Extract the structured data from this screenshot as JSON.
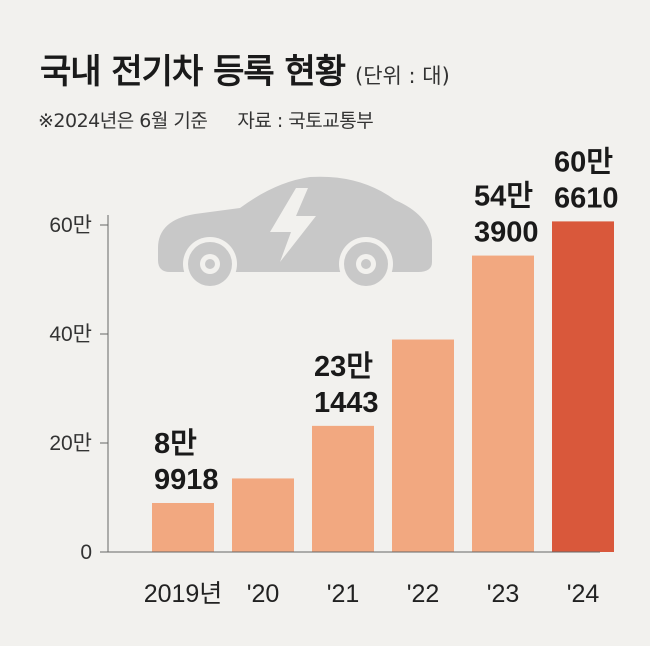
{
  "header": {
    "title": "국내 전기차 등록 현황",
    "unit": "(단위 : 대)",
    "note": "※2024년은 6월 기준",
    "source": "자료 : 국토교통부"
  },
  "chart_data": {
    "type": "bar",
    "categories": [
      "2019년",
      "'20",
      "'21",
      "'22",
      "'23",
      "'24"
    ],
    "values": [
      89918,
      134962,
      231443,
      389855,
      543900,
      606610
    ],
    "data_labels": [
      [
        "8만",
        "9918"
      ],
      null,
      [
        "23만",
        "1443"
      ],
      null,
      [
        "54만",
        "3900"
      ],
      [
        "60만",
        "6610"
      ]
    ],
    "yticks": [
      {
        "value": 0,
        "label": "0"
      },
      {
        "value": 200000,
        "label": "20만"
      },
      {
        "value": 400000,
        "label": "40만"
      },
      {
        "value": 600000,
        "label": "60만"
      }
    ],
    "ylim": [
      0,
      600000
    ],
    "colors": [
      "#f2a880",
      "#f2a880",
      "#f2a880",
      "#f2a880",
      "#f2a880",
      "#d9583b"
    ],
    "grid": false
  },
  "illustration": {
    "icon": "electric-car-icon",
    "color": "#c8c8c8"
  }
}
